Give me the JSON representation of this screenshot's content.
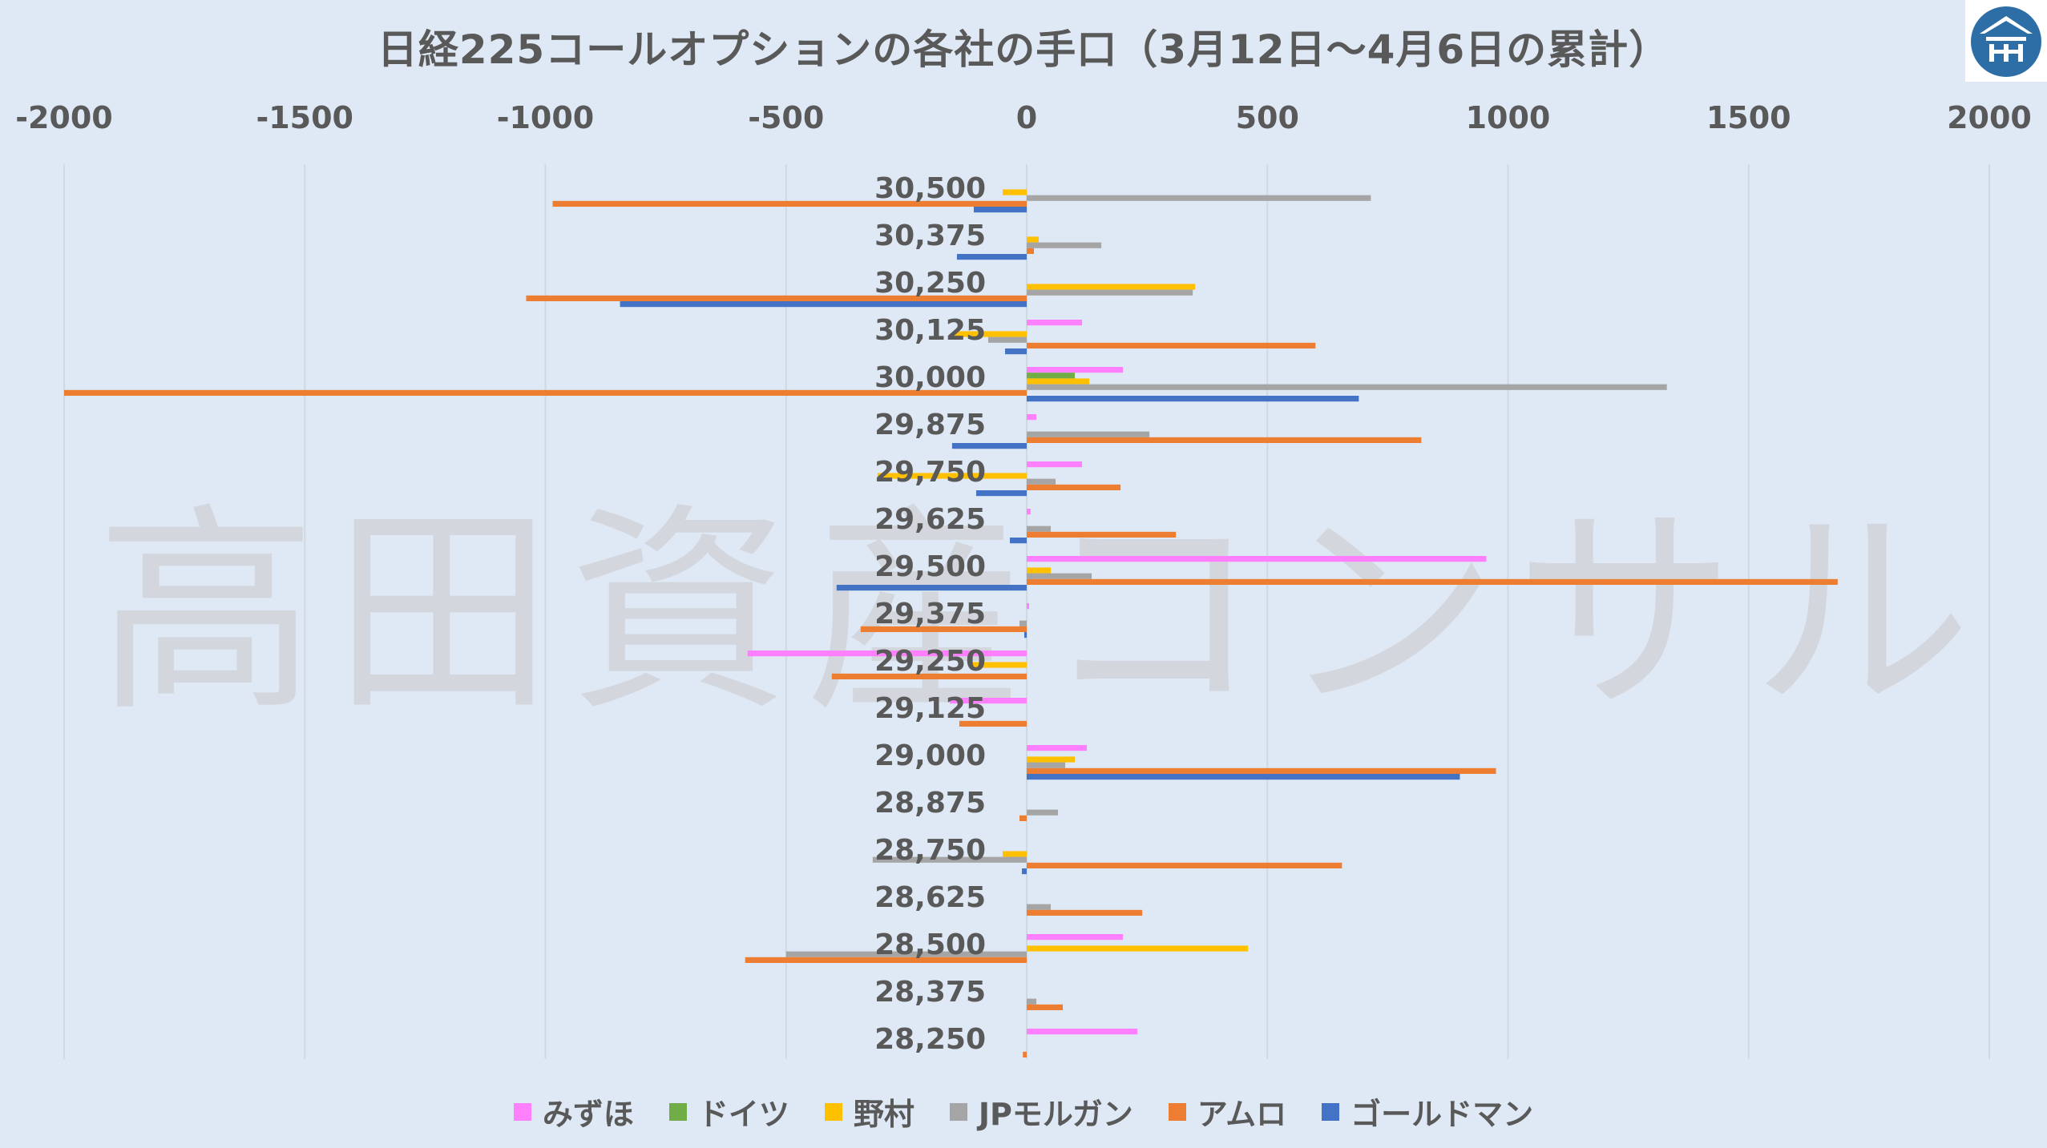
{
  "chart_data": {
    "type": "bar",
    "orientation": "horizontal",
    "title": "日経225コールオプションの各社の手口（3月12日～4月6日の累計）",
    "watermark": "高田資産コンサル",
    "xlim": [
      -2000,
      2000
    ],
    "x_ticks": [
      "-2000",
      "-1500",
      "-1000",
      "-500",
      "0",
      "500",
      "1000",
      "1500",
      "2000"
    ],
    "x_tick_values": [
      -2000,
      -1500,
      -1000,
      -500,
      0,
      500,
      1000,
      1500,
      2000
    ],
    "x_axis_position": "top",
    "grid": true,
    "legend_position": "bottom",
    "categories": [
      "30,500",
      "30,375",
      "30,250",
      "30,125",
      "30,000",
      "29,875",
      "29,750",
      "29,625",
      "29,500",
      "29,375",
      "29,250",
      "29,125",
      "29,000",
      "28,875",
      "28,750",
      "28,625",
      "28,500",
      "28,375",
      "28,250"
    ],
    "series": [
      {
        "name": "みずほ",
        "color": "#ff80ff",
        "values": [
          0,
          0,
          0,
          115,
          200,
          20,
          115,
          8,
          955,
          5,
          -580,
          -160,
          125,
          0,
          0,
          0,
          200,
          0,
          230
        ]
      },
      {
        "name": "ドイツ",
        "color": "#70ad47",
        "values": [
          0,
          0,
          0,
          0,
          100,
          0,
          0,
          0,
          0,
          0,
          0,
          0,
          0,
          0,
          0,
          0,
          0,
          0,
          0
        ]
      },
      {
        "name": "野村",
        "color": "#ffc000",
        "values": [
          -50,
          25,
          350,
          -150,
          130,
          0,
          -310,
          0,
          50,
          0,
          -120,
          0,
          100,
          0,
          -50,
          0,
          460,
          0,
          0
        ]
      },
      {
        "name": "JPモルガン",
        "color": "#a5a5a5",
        "values": [
          715,
          155,
          345,
          -80,
          1330,
          255,
          60,
          50,
          135,
          -15,
          0,
          0,
          80,
          65,
          -320,
          50,
          -500,
          20,
          0
        ]
      },
      {
        "name": "アムロ",
        "color": "#ed7d31",
        "values": [
          -985,
          15,
          -1040,
          600,
          -2000,
          820,
          195,
          310,
          1685,
          -345,
          -405,
          -140,
          975,
          -15,
          655,
          240,
          -585,
          75,
          -8
        ]
      },
      {
        "name": "ゴールドマン",
        "color": "#4472c4",
        "values": [
          -110,
          -145,
          -845,
          -45,
          690,
          -155,
          -105,
          -35,
          -395,
          -5,
          0,
          0,
          900,
          0,
          -10,
          0,
          0,
          0,
          0
        ]
      }
    ]
  },
  "legend_labels": {
    "s0": "みずほ",
    "s1": "ドイツ",
    "s2": "野村",
    "s3": "JPモルガン",
    "s4": "アムロ",
    "s5": "ゴールドマン"
  },
  "colors": {
    "background": "#dfe9f5",
    "grid": "#d0d8e0",
    "text": "#595959",
    "watermark": "#c0c0c0"
  }
}
